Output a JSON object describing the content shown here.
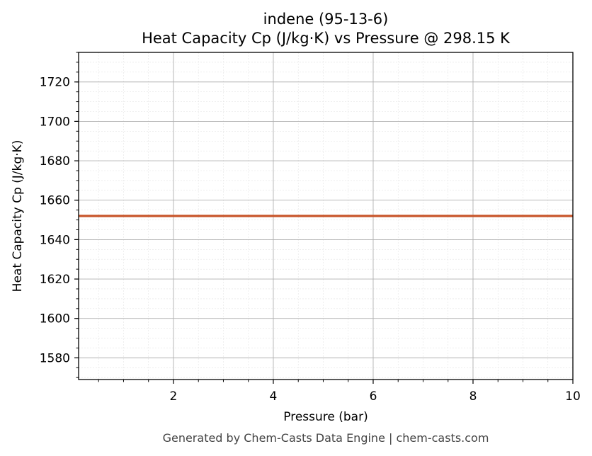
{
  "chart_data": {
    "type": "line",
    "title": "indene (95-13-6)",
    "subtitle": "Heat Capacity Cp (J/kg·K) vs Pressure @ 298.15 K",
    "xlabel": "Pressure (bar)",
    "ylabel": "Heat Capacity Cp (J/kg·K)",
    "xlim": [
      0.1,
      10
    ],
    "ylim": [
      1569,
      1735
    ],
    "x_ticks": [
      2,
      4,
      6,
      8,
      10
    ],
    "y_ticks": [
      1580,
      1600,
      1620,
      1640,
      1660,
      1680,
      1700,
      1720
    ],
    "grid": true,
    "minor_grid": true,
    "series": [
      {
        "color": "#c8552a",
        "x": [
          0.1,
          1,
          2,
          3,
          4,
          5,
          6,
          7,
          8,
          9,
          10
        ],
        "y": [
          1652,
          1652,
          1652,
          1652,
          1652,
          1652,
          1652,
          1652,
          1652,
          1652,
          1652
        ]
      }
    ]
  },
  "footer": "Generated by Chem-Casts Data Engine | chem-casts.com"
}
